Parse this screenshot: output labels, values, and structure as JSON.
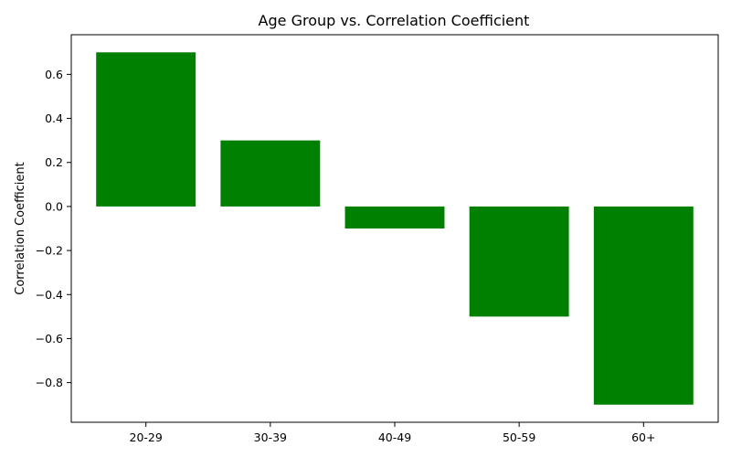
{
  "chart_data": {
    "type": "bar",
    "title": "Age Group vs. Correlation Coefficient",
    "xlabel": "",
    "ylabel": "Correlation Coefficient",
    "categories": [
      "20-29",
      "30-39",
      "40-49",
      "50-59",
      "60+"
    ],
    "values": [
      0.7,
      0.3,
      -0.1,
      -0.5,
      -0.9
    ],
    "ylim": [
      -0.98,
      0.78
    ],
    "yticks": [
      -0.8,
      -0.6,
      -0.4,
      -0.2,
      0.0,
      0.2,
      0.4,
      0.6
    ],
    "ytick_labels": [
      "−0.8",
      "−0.6",
      "−0.4",
      "−0.2",
      "0.0",
      "0.2",
      "0.4",
      "0.6"
    ],
    "bar_color": "#008000",
    "grid": false,
    "legend": "none"
  }
}
